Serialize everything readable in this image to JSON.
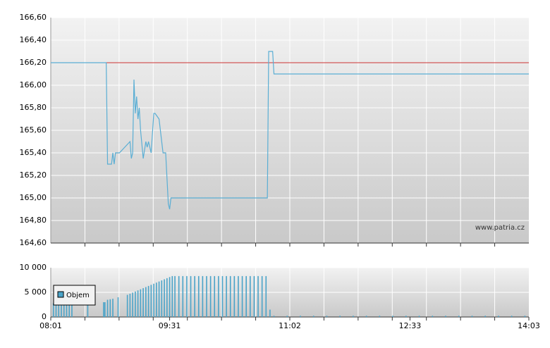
{
  "chart_data": [
    {
      "type": "line",
      "watermark": "www.patria.cz",
      "x": [
        481,
        523,
        524,
        527,
        528,
        529,
        530,
        533,
        541,
        542,
        543,
        544,
        545,
        546,
        547,
        548,
        549,
        551,
        553,
        554,
        555,
        556,
        557,
        559,
        560,
        563,
        565,
        566,
        568,
        570,
        571,
        572,
        645,
        646,
        649,
        650,
        843
      ],
      "values": [
        166.2,
        166.2,
        165.3,
        165.3,
        165.4,
        165.3,
        165.4,
        165.4,
        165.5,
        165.35,
        165.4,
        166.05,
        165.75,
        165.9,
        165.7,
        165.8,
        165.6,
        165.35,
        165.5,
        165.45,
        165.5,
        165.45,
        165.4,
        165.75,
        165.75,
        165.7,
        165.5,
        165.4,
        165.4,
        164.95,
        164.9,
        165.0,
        165.0,
        166.3,
        166.3,
        166.1,
        166.1
      ],
      "color": "#5aaed4",
      "reference_line": {
        "value": 166.2,
        "color": "#cc3333"
      },
      "xlim": [
        481,
        843
      ],
      "ylim": [
        164.6,
        166.6
      ],
      "yticks": [
        {
          "value": 164.6,
          "label": "164,60"
        },
        {
          "value": 164.8,
          "label": "164,80"
        },
        {
          "value": 165.0,
          "label": "165,00"
        },
        {
          "value": 165.2,
          "label": "165,20"
        },
        {
          "value": 165.4,
          "label": "165,40"
        },
        {
          "value": 165.6,
          "label": "165,60"
        },
        {
          "value": 165.8,
          "label": "165,80"
        },
        {
          "value": 166.0,
          "label": "166,00"
        },
        {
          "value": 166.2,
          "label": "166,20"
        },
        {
          "value": 166.4,
          "label": "166,40"
        },
        {
          "value": 166.6,
          "label": "166,60"
        }
      ],
      "grid": true
    },
    {
      "type": "bar",
      "x": [
        483,
        485,
        487,
        489,
        491,
        493,
        495,
        497,
        509,
        521,
        522,
        524,
        526,
        528,
        532,
        539,
        541,
        543,
        545,
        547,
        549,
        551,
        553,
        555,
        557,
        559,
        561,
        563,
        565,
        567,
        569,
        571,
        573,
        575,
        578,
        581,
        584,
        587,
        590,
        593,
        596,
        599,
        602,
        605,
        608,
        611,
        614,
        617,
        620,
        623,
        626,
        629,
        632,
        635,
        638,
        641,
        644,
        647,
        650,
        660,
        670,
        680,
        690,
        700,
        710,
        720,
        730,
        740,
        750,
        760,
        770,
        780,
        790,
        800,
        810,
        820,
        830,
        840
      ],
      "series": [
        {
          "name": "Objem",
          "color": "#4aa3c8",
          "values": [
            2800,
            2800,
            2800,
            2800,
            2800,
            2800,
            2800,
            2800,
            2800,
            3000,
            3000,
            3500,
            3600,
            3700,
            4000,
            4500,
            4720,
            4950,
            5170,
            5400,
            5620,
            5850,
            6070,
            6300,
            6520,
            6750,
            6970,
            7200,
            7420,
            7650,
            7870,
            8100,
            8300,
            8300,
            8300,
            8300,
            8300,
            8300,
            8300,
            8300,
            8300,
            8300,
            8300,
            8300,
            8300,
            8300,
            8300,
            8300,
            8300,
            8300,
            8300,
            8300,
            8300,
            8300,
            8300,
            8300,
            8300,
            1500,
            250,
            250,
            250,
            250,
            250,
            250,
            250,
            250,
            250,
            250,
            250,
            250,
            250,
            250,
            250,
            250,
            250,
            250,
            250,
            250
          ]
        }
      ],
      "xlim": [
        481,
        843
      ],
      "xticks": [
        {
          "value": 481,
          "label": "08:01"
        },
        {
          "value": 571,
          "label": "09:31"
        },
        {
          "value": 662,
          "label": "11:02"
        },
        {
          "value": 753,
          "label": "12:33"
        },
        {
          "value": 843,
          "label": "14:03"
        }
      ],
      "ylim": [
        0,
        10000
      ],
      "yticks": [
        0,
        {
          "value": 5000,
          "label": "5 000"
        },
        {
          "value": 10000,
          "label": "10 000"
        }
      ],
      "grid": true,
      "legend": "upper-left"
    }
  ]
}
